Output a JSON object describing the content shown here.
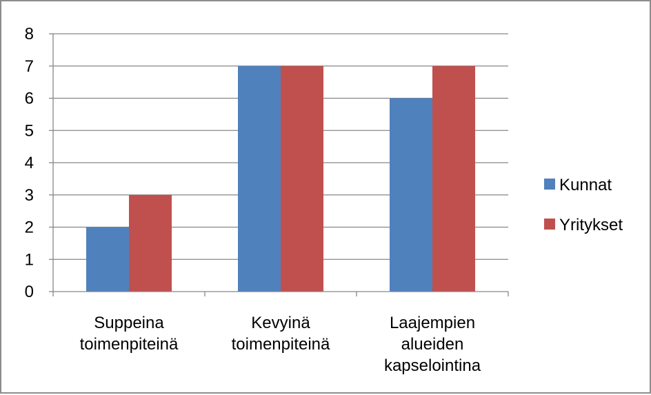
{
  "chart_data": {
    "type": "bar",
    "categories": [
      [
        "Suppeina",
        "toimenpiteinä"
      ],
      [
        "Kevyinä",
        "toimenpiteinä"
      ],
      [
        "Laajempien",
        "alueiden",
        "kapselointina"
      ]
    ],
    "series": [
      {
        "name": "Kunnat",
        "values": [
          2,
          7,
          6
        ],
        "color": "#4F81BD"
      },
      {
        "name": "Yritykset",
        "values": [
          3,
          7,
          7
        ],
        "color": "#C0504D"
      }
    ],
    "ylim": [
      0,
      8
    ],
    "yticks": [
      0,
      1,
      2,
      3,
      4,
      5,
      6,
      7,
      8
    ],
    "grid": true,
    "legend_position": "right",
    "title": "",
    "xlabel": "",
    "ylabel": ""
  }
}
